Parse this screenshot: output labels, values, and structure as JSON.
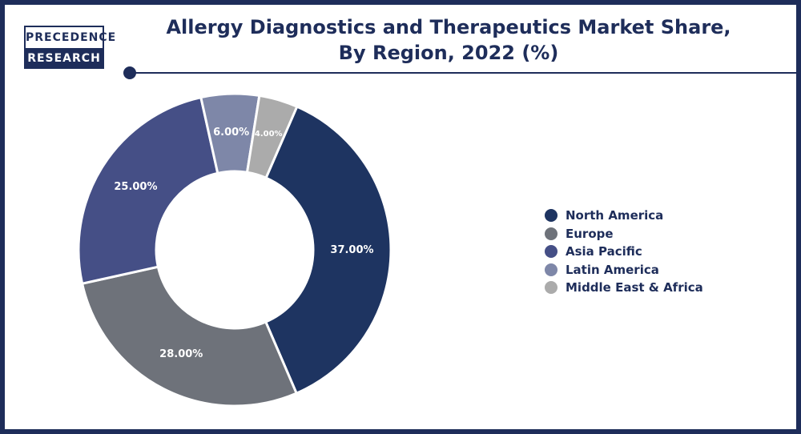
{
  "logo": {
    "line1": "PRECEDENCE",
    "line2": "RESEARCH"
  },
  "title": {
    "line1": "Allergy Diagnostics and Therapeutics Market Share,",
    "line2": "By Region, 2022 (%)"
  },
  "chart_data": {
    "type": "pie",
    "donut": true,
    "title": "Allergy Diagnostics and Therapeutics Market Share, By Region, 2022 (%)",
    "categories": [
      "North America",
      "Europe",
      "Asia Pacific",
      "Latin America",
      "Middle East & Africa"
    ],
    "values": [
      37,
      28,
      25,
      6,
      4
    ],
    "data_labels": [
      "37.00%",
      "28.00%",
      "25.00%",
      "6.00%",
      "4.00%"
    ],
    "colors": [
      "#1e3461",
      "#6e727a",
      "#454f86",
      "#7e87a8",
      "#ababab"
    ],
    "legend_position": "right"
  }
}
